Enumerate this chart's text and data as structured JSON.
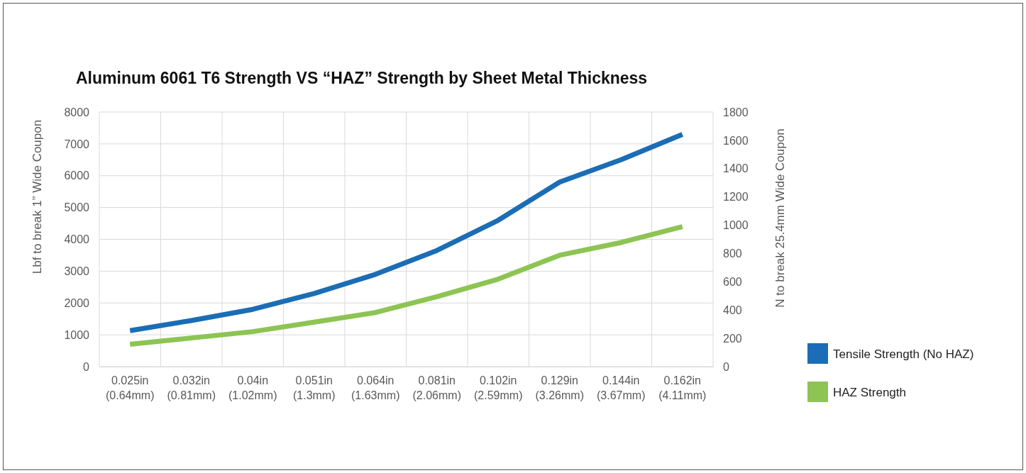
{
  "chart_data": {
    "type": "line",
    "title": "Aluminum 6061 T6 Strength VS “HAZ” Strength by Sheet Metal Thickness",
    "ylabel": "Lbf to break 1” Wide Coupon",
    "y2label": "N to break 25.4mm Wide Coupon",
    "categories": [
      "0.025in\n(0.64mm)",
      "0.032in\n(0.81mm)",
      "0.04in\n(1.02mm)",
      "0.051in\n(1.3mm)",
      "0.064in\n(1.63mm)",
      "0.081in\n(2.06mm)",
      "0.102in\n(2.59mm)",
      "0.129in\n(3.26mm)",
      "0.144in\n(3.67mm)",
      "0.162in\n(4.11mm)"
    ],
    "series": [
      {
        "name": "Tensile Strength (No HAZ)",
        "color": "#1b6db5",
        "values": [
          1130,
          1450,
          1800,
          2300,
          2900,
          3650,
          4600,
          5800,
          6500,
          7300
        ]
      },
      {
        "name": "HAZ Strength",
        "color": "#8dc453",
        "values": [
          700,
          900,
          1100,
          1400,
          1700,
          2200,
          2750,
          3500,
          3900,
          4400
        ]
      }
    ],
    "ylim": [
      0,
      8000
    ],
    "yticks": [
      0,
      1000,
      2000,
      3000,
      4000,
      5000,
      6000,
      7000,
      8000
    ],
    "y2lim": [
      0,
      1800
    ],
    "y2ticks": [
      0,
      200,
      400,
      600,
      800,
      1000,
      1200,
      1400,
      1600,
      1800
    ],
    "grid": true,
    "legend": "right",
    "marker": "none",
    "line_style": "solid"
  }
}
